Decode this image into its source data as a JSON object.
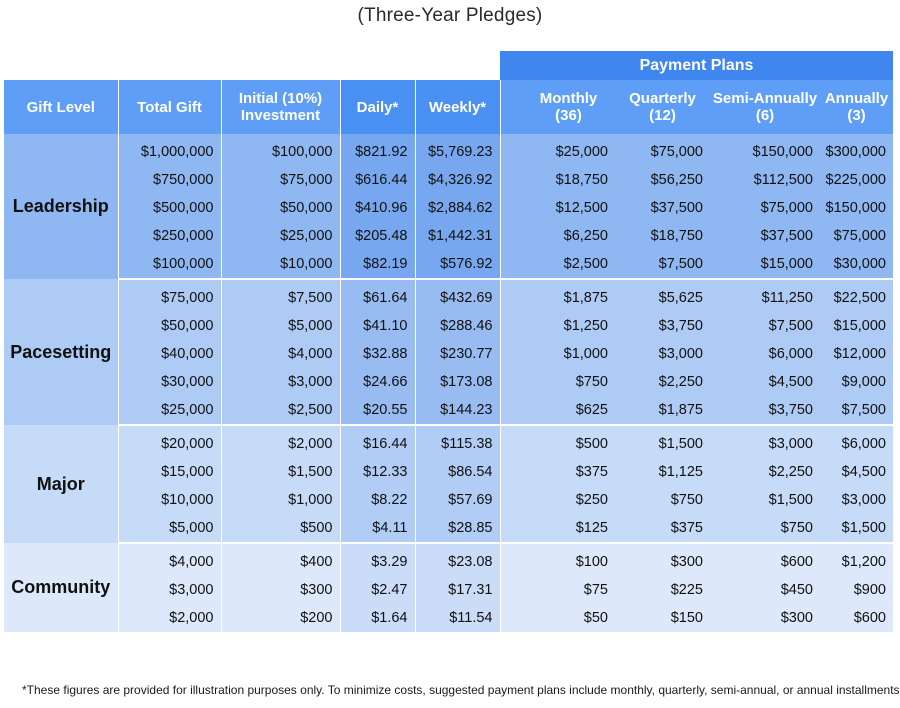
{
  "subtitle": "(Three-Year Pledges)",
  "payment_plans_label": "Payment Plans",
  "headers": {
    "gift_level": "Gift Level",
    "total_gift": "Total Gift",
    "initial_line1": "Initial (10%)",
    "initial_line2": "Investment",
    "daily": "Daily*",
    "weekly": "Weekly*",
    "monthly_line1": "Monthly",
    "monthly_line2": "(36)",
    "quarterly_line1": "Quarterly",
    "quarterly_line2": "(12)",
    "semi_line1": "Semi-Annually",
    "semi_line2": "(6)",
    "annually_line1": "Annually",
    "annually_line2": "(3)"
  },
  "groups": [
    {
      "level": "Leadership",
      "rows": [
        [
          "$1,000,000",
          "$100,000",
          "$821.92",
          "$5,769.23",
          "$25,000",
          "$75,000",
          "$150,000",
          "$300,000"
        ],
        [
          "$750,000",
          "$75,000",
          "$616.44",
          "$4,326.92",
          "$18,750",
          "$56,250",
          "$112,500",
          "$225,000"
        ],
        [
          "$500,000",
          "$50,000",
          "$410.96",
          "$2,884.62",
          "$12,500",
          "$37,500",
          "$75,000",
          "$150,000"
        ],
        [
          "$250,000",
          "$25,000",
          "$205.48",
          "$1,442.31",
          "$6,250",
          "$18,750",
          "$37,500",
          "$75,000"
        ],
        [
          "$100,000",
          "$10,000",
          "$82.19",
          "$576.92",
          "$2,500",
          "$7,500",
          "$15,000",
          "$30,000"
        ]
      ]
    },
    {
      "level": "Pacesetting",
      "rows": [
        [
          "$75,000",
          "$7,500",
          "$61.64",
          "$432.69",
          "$1,875",
          "$5,625",
          "$11,250",
          "$22,500"
        ],
        [
          "$50,000",
          "$5,000",
          "$41.10",
          "$288.46",
          "$1,250",
          "$3,750",
          "$7,500",
          "$15,000"
        ],
        [
          "$40,000",
          "$4,000",
          "$32.88",
          "$230.77",
          "$1,000",
          "$3,000",
          "$6,000",
          "$12,000"
        ],
        [
          "$30,000",
          "$3,000",
          "$24.66",
          "$173.08",
          "$750",
          "$2,250",
          "$4,500",
          "$9,000"
        ],
        [
          "$25,000",
          "$2,500",
          "$20.55",
          "$144.23",
          "$625",
          "$1,875",
          "$3,750",
          "$7,500"
        ]
      ]
    },
    {
      "level": "Major",
      "rows": [
        [
          "$20,000",
          "$2,000",
          "$16.44",
          "$115.38",
          "$500",
          "$1,500",
          "$3,000",
          "$6,000"
        ],
        [
          "$15,000",
          "$1,500",
          "$12.33",
          "$86.54",
          "$375",
          "$1,125",
          "$2,250",
          "$4,500"
        ],
        [
          "$10,000",
          "$1,000",
          "$8.22",
          "$57.69",
          "$250",
          "$750",
          "$1,500",
          "$3,000"
        ],
        [
          "$5,000",
          "$500",
          "$4.11",
          "$28.85",
          "$125",
          "$375",
          "$750",
          "$1,500"
        ]
      ]
    },
    {
      "level": "Community",
      "rows": [
        [
          "$4,000",
          "$400",
          "$3.29",
          "$23.08",
          "$100",
          "$300",
          "$600",
          "$1,200"
        ],
        [
          "$3,000",
          "$300",
          "$2.47",
          "$17.31",
          "$75",
          "$225",
          "$450",
          "$900"
        ],
        [
          "$2,000",
          "$200",
          "$1.64",
          "$11.54",
          "$50",
          "$150",
          "$300",
          "$600"
        ]
      ]
    }
  ],
  "footnote": "*These figures are provided for illustration purposes only. To minimize costs, suggested payment plans include monthly, quarterly, semi-annual, or annual installments."
}
